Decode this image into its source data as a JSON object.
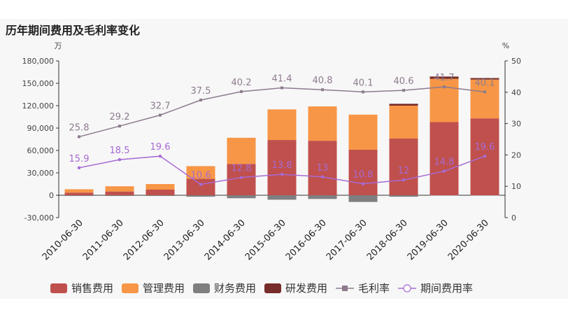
{
  "chart_data": {
    "type": "bar",
    "title": "历年期间费用及毛利率变化",
    "y_left_unit": "万",
    "y_right_unit": "%",
    "ylim_left": [
      -30000,
      180000
    ],
    "yticks_left": [
      "-30,000",
      "0",
      "30,000",
      "60,000",
      "90,000",
      "120,000",
      "150,000",
      "180,000"
    ],
    "ylim_right": [
      0,
      50
    ],
    "yticks_right": [
      "0",
      "10",
      "20",
      "30",
      "40",
      "50"
    ],
    "categories": [
      "2010-06-30",
      "2011-06-30",
      "2012-06-30",
      "2013-06-30",
      "2014-06-30",
      "2015-06-30",
      "2016-06-30",
      "2017-06-30",
      "2018-06-30",
      "2019-06-30",
      "2020-06-30"
    ],
    "bar_series": [
      {
        "name": "销售费用",
        "color": "#c0504d",
        "values": [
          3500,
          5000,
          7500,
          22000,
          42000,
          74000,
          73000,
          61000,
          76000,
          98000,
          103000
        ]
      },
      {
        "name": "管理费用",
        "color": "#f79646",
        "values": [
          4500,
          7000,
          7500,
          17000,
          35000,
          41000,
          46000,
          47000,
          44000,
          58000,
          52000
        ]
      },
      {
        "name": "财务费用",
        "color": "#7f7f7f",
        "values": [
          -1000,
          -1000,
          -1000,
          -2000,
          -4000,
          -6000,
          -5000,
          -9000,
          -2000,
          -500,
          -500
        ]
      },
      {
        "name": "研发费用",
        "color": "#772c2a",
        "values": [
          0,
          0,
          0,
          0,
          0,
          0,
          0,
          0,
          2500,
          3000,
          2000
        ]
      }
    ],
    "line_series": [
      {
        "name": "毛利率",
        "color": "#8d7b8d",
        "marker": "square",
        "values": [
          25.8,
          29.2,
          32.7,
          37.5,
          40.2,
          41.4,
          40.8,
          40.1,
          40.6,
          41.7,
          40.1
        ],
        "labels": [
          "25.8",
          "29.2",
          "32.7",
          "37.5",
          "40.2",
          "41.4",
          "40.8",
          "40.1",
          "40.6",
          "41.7",
          "40.1"
        ]
      },
      {
        "name": "期间费用率",
        "color": "#a66bd3",
        "marker": "circle",
        "values": [
          15.9,
          18.5,
          19.6,
          10.6,
          12.8,
          13.8,
          13,
          10.8,
          12,
          14.8,
          19.6
        ],
        "labels": [
          "15.9",
          "18.5",
          "19.6",
          "10.6",
          "12.8",
          "13.8",
          "13",
          "10.8",
          "12",
          "14.8",
          "19.6"
        ]
      }
    ],
    "legend_position": "bottom",
    "grid": false
  }
}
